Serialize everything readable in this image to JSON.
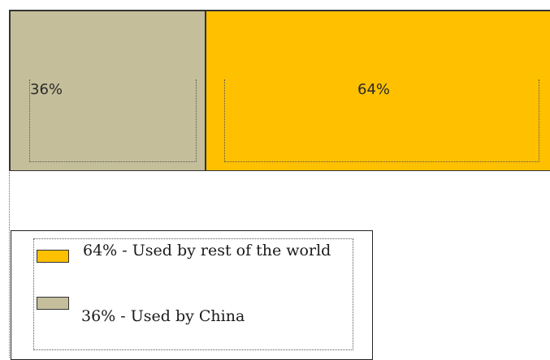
{
  "chart_data": {
    "type": "bar",
    "orientation": "horizontal-stacked",
    "categories": [
      "Used by China",
      "Used by rest of the world"
    ],
    "values": [
      36,
      64
    ],
    "unit": "%",
    "data_labels": [
      "36%",
      "64%"
    ],
    "colors": [
      "#c4be9a",
      "#ffc000"
    ],
    "legend": {
      "placement": "bottom-left",
      "entries": [
        {
          "label": "64% - Used by rest of the world",
          "color": "#ffc000"
        },
        {
          "label": "36% - Used by China",
          "color": "#c4be9a"
        }
      ]
    },
    "title": "",
    "xlabel": "",
    "ylabel": "",
    "grid": false
  }
}
